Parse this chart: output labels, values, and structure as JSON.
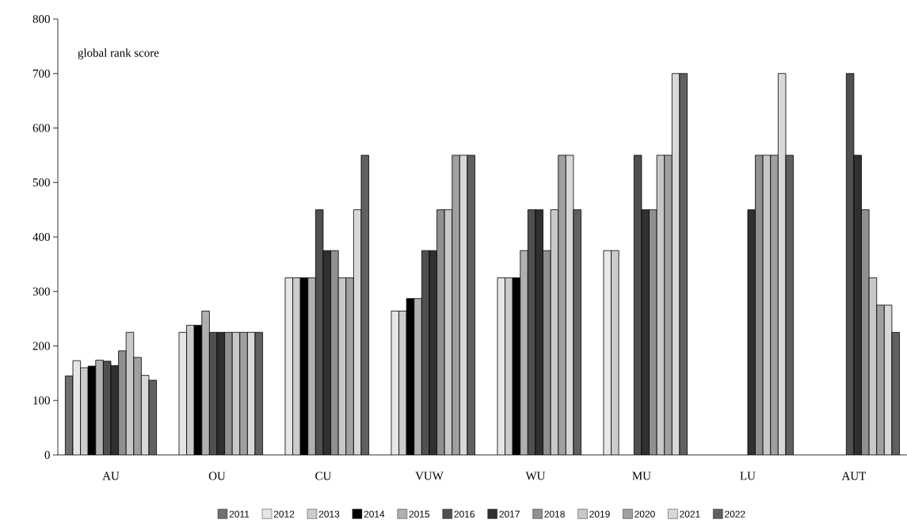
{
  "chart_data": {
    "type": "bar",
    "categories": [
      "AU",
      "OU",
      "CU",
      "VUW",
      "WU",
      "MU",
      "LU",
      "AUT"
    ],
    "series": [
      {
        "name": "2011",
        "color": "#707070",
        "values": [
          145,
          null,
          null,
          null,
          null,
          null,
          null,
          null
        ]
      },
      {
        "name": "2012",
        "color": "#e6e6e6",
        "values": [
          173,
          225,
          325,
          264,
          325,
          375,
          null,
          null
        ]
      },
      {
        "name": "2013",
        "color": "#cccccc",
        "values": [
          160,
          238,
          325,
          264,
          325,
          375,
          null,
          null
        ]
      },
      {
        "name": "2014",
        "color": "#000000",
        "values": [
          163,
          238,
          325,
          287,
          325,
          null,
          null,
          null
        ]
      },
      {
        "name": "2015",
        "color": "#b0b0b0",
        "values": [
          174,
          264,
          325,
          287,
          375,
          null,
          null,
          null
        ]
      },
      {
        "name": "2016",
        "color": "#505050",
        "values": [
          172,
          225,
          450,
          375,
          450,
          550,
          null,
          700
        ]
      },
      {
        "name": "2017",
        "color": "#303030",
        "values": [
          164,
          225,
          375,
          375,
          450,
          450,
          450,
          550
        ]
      },
      {
        "name": "2018",
        "color": "#909090",
        "values": [
          191,
          225,
          375,
          450,
          375,
          450,
          550,
          450
        ]
      },
      {
        "name": "2019",
        "color": "#c8c8c8",
        "values": [
          225,
          225,
          325,
          450,
          450,
          550,
          550,
          325
        ]
      },
      {
        "name": "2020",
        "color": "#a0a0a0",
        "values": [
          179,
          225,
          325,
          550,
          550,
          550,
          550,
          275
        ]
      },
      {
        "name": "2021",
        "color": "#d8d8d8",
        "values": [
          146,
          225,
          450,
          550,
          550,
          700,
          700,
          275
        ]
      },
      {
        "name": "2022",
        "color": "#606060",
        "values": [
          137,
          225,
          550,
          550,
          450,
          700,
          550,
          225
        ]
      }
    ],
    "ylim": [
      0,
      800
    ],
    "yticks": [
      0,
      100,
      200,
      300,
      400,
      500,
      600,
      700,
      800
    ],
    "grid": false,
    "legend": "bottom",
    "annotations": [
      "global rank score"
    ]
  }
}
